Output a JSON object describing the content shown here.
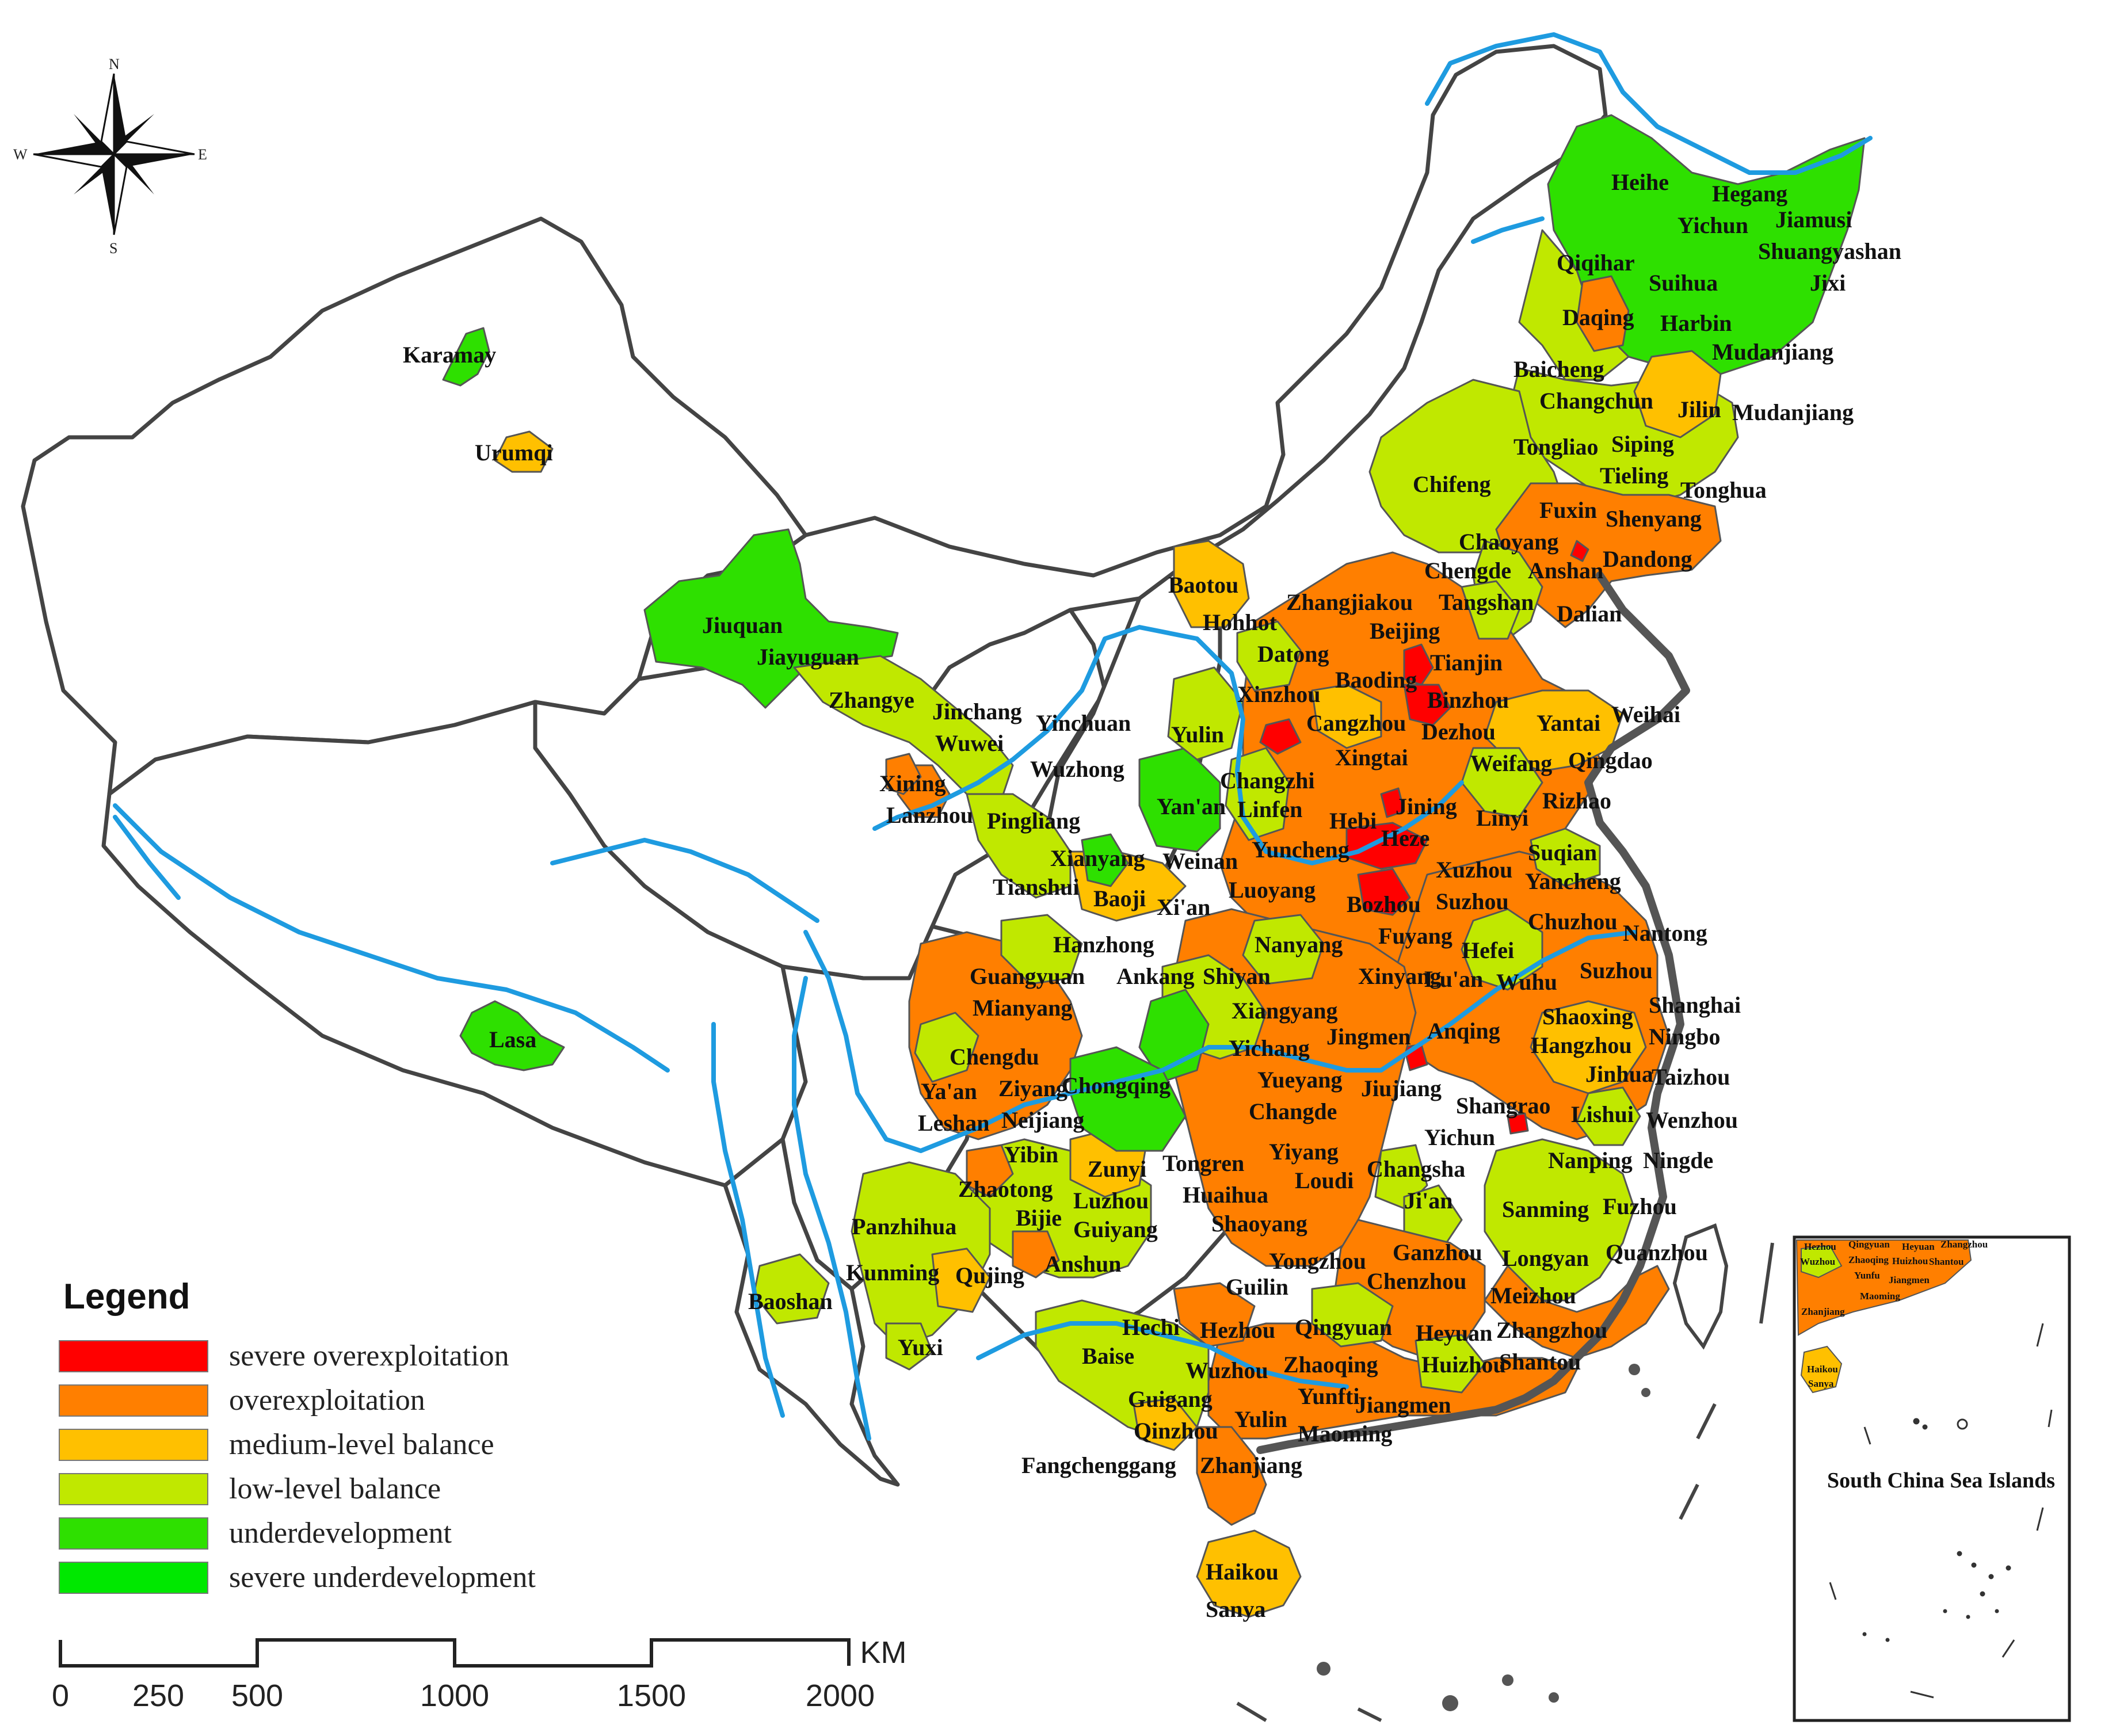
{
  "legend": {
    "title": "Legend",
    "items": [
      {
        "label": "severe overexploitation",
        "color": "#ff0000"
      },
      {
        "label": "overexploitation",
        "color": "#ff7f00"
      },
      {
        "label": "medium-level balance",
        "color": "#ffc000"
      },
      {
        "label": "low-level balance",
        "color": "#c0e800"
      },
      {
        "label": "underdevelopment",
        "color": "#2ee000"
      },
      {
        "label": "severe underdevelopment",
        "color": "#00e800"
      }
    ]
  },
  "scale_bar": {
    "unit": "KM",
    "ticks": [
      "0",
      "250",
      "500",
      "1000",
      "1500",
      "2000"
    ]
  },
  "compass": {
    "n": "N",
    "s": "S",
    "e": "E",
    "w": "W"
  },
  "inset": {
    "title": "South China Sea Islands",
    "labels": [
      "Hezhou",
      "Qingyuan",
      "Heyuan",
      "Zhangzhou",
      "Wuzhou",
      "Zhaoqing",
      "Huizhou",
      "Shantou",
      "Yunfu",
      "Jiangmen",
      "Maoming",
      "Zhanjiang",
      "Haikou",
      "Sanya"
    ]
  },
  "cities": {
    "karamay": "Karamay",
    "urumqi": "Urumqi",
    "jiuquan": "Jiuquan",
    "jiayuguan": "Jiayuguan",
    "lasa": "Lasa",
    "zhangye": "Zhangye",
    "jinchang": "Jinchang",
    "wuwei": "Wuwei",
    "yinchuan": "Yinchuan",
    "xining": "Xining",
    "lanzhou": "Lanzhou",
    "pingliang": "Pingliang",
    "wuzhong": "Wuzhong",
    "tianshui": "Tianshui",
    "xianyang": "Xianyang",
    "baoji": "Baoji",
    "weinan": "Weinan",
    "xian": "Xi'an",
    "yanan": "Yan'an",
    "yulin_n": "Yulin",
    "baotou": "Baotou",
    "hohhot": "Hohhot",
    "datong": "Datong",
    "xinzhou": "Xinzhou",
    "changzhi": "Changzhi",
    "linfen": "Linfen",
    "yuncheng": "Yuncheng",
    "luoyang": "Luoyang",
    "hebi": "Hebi",
    "heze": "Heze",
    "jining": "Jining",
    "linyi": "Linyi",
    "rizhao": "Rizhao",
    "weifang": "Weifang",
    "qingdao": "Qingdao",
    "yantai": "Yantai",
    "weihai": "Weihai",
    "dezhou": "Dezhou",
    "binzhou": "Binzhou",
    "tianjin": "Tianjin",
    "beijing": "Beijing",
    "baoding": "Baoding",
    "cangzhou": "Cangzhou",
    "xingtai": "Xingtai",
    "zhangjiakou": "Zhangjiakou",
    "tangshan": "Tangshan",
    "chengde": "Chengde",
    "dalian": "Dalian",
    "anshan": "Anshan",
    "dandong": "Dandong",
    "chaoyang": "Chaoyang",
    "fuxin": "Fuxin",
    "shenyang": "Shenyang",
    "tieling": "Tieling",
    "tonghua": "Tonghua",
    "siping": "Siping",
    "tongliao": "Tongliao",
    "chifeng": "Chifeng",
    "changchun": "Changchun",
    "jilin": "Jilin",
    "mudanjiang1": "Mudanjiang",
    "mudanjiang2": "Mudanjiang",
    "baicheng": "Baicheng",
    "daqing": "Daqing",
    "harbin": "Harbin",
    "qiqihar": "Qiqihar",
    "suihua": "Suihua",
    "heihe": "Heihe",
    "hegang": "Hegang",
    "yichun_n": "Yichun",
    "jiamusi": "Jiamusi",
    "shuangyashan": "Shuangyashan",
    "jixi": "Jixi",
    "xuzhou": "Xuzhou",
    "suqian": "Suqian",
    "yancheng": "Yancheng",
    "suzhou_n": "Suzhou",
    "bozhou": "Bozhou",
    "chuzhou": "Chuzhou",
    "nantong": "Nantong",
    "fuyang": "Fuyang",
    "hefei": "Hefei",
    "luan": "Lu'an",
    "wuhu": "Wuhu",
    "suzhou_s": "Suzhou",
    "shanghai": "Shanghai",
    "shaoxing": "Shaoxing",
    "ningbo": "Ningbo",
    "hangzhou": "Hangzhou",
    "anqing": "Anqing",
    "jinhua": "Jinhua",
    "taizhou": "Taizhou",
    "lishui": "Lishui",
    "wenzhou": "Wenzhou",
    "shangrao": "Shangrao",
    "jiujiang": "Jiujiang",
    "nanping": "Nanping",
    "ningde": "Ningde",
    "sanming": "Sanming",
    "fuzhou": "Fuzhou",
    "longyan": "Longyan",
    "quanzhou": "Quanzhou",
    "zhangzhou": "Zhangzhou",
    "meizhou": "Meizhou",
    "shantou": "Shantou",
    "heyuan": "Heyuan",
    "huizhou": "Huizhou",
    "ganzhou": "Ganzhou",
    "jian": "Ji'an",
    "changsha": "Changsha",
    "yichun_s": "Yichun",
    "nanyang": "Nanyang",
    "xinyang": "Xinyang",
    "hanzhong": "Hanzhong",
    "ankang": "Ankang",
    "shiyan": "Shiyan",
    "xiangyang": "Xiangyang",
    "jingmen": "Jingmen",
    "yichang": "Yichang",
    "yueyang": "Yueyang",
    "changde": "Changde",
    "yiyang": "Yiyang",
    "loudi": "Loudi",
    "huaihua": "Huaihua",
    "shaoyang": "Shaoyang",
    "yongzhou": "Yongzhou",
    "chenzhou": "Chenzhou",
    "guilin": "Guilin",
    "hezhou": "Hezhou",
    "qingyuan": "Qingyuan",
    "zhaoqing": "Zhaoqing",
    "wuzhou": "Wuzhou",
    "yunfu": "Yunfti",
    "jiangmen": "Jiangmen",
    "maoming": "Maoming",
    "yulin_s": "Yulin",
    "guigang": "Guigang",
    "qinzhou": "Qinzhou",
    "fangchenggang": "Fangchenggang",
    "zhanjiang": "Zhanjiang",
    "haikou": "Haikou",
    "sanya": "Sanya",
    "hechi": "Hechi",
    "baise": "Baise",
    "guangyuan": "Guangyuan",
    "mianyang": "Mianyang",
    "chengdu": "Chengdu",
    "yaan": "Ya'an",
    "ziyang": "Ziyang",
    "chongqing": "Chongqing",
    "leshan": "Leshan",
    "neijiang": "Neijiang",
    "yibin": "Yibin",
    "zunyi": "Zunyi",
    "tongren": "Tongren",
    "zhaotong": "Zhaotong",
    "luzhou": "Luzhou",
    "bijie": "Bijie",
    "guiyang": "Guiyang",
    "panzhihua": "Panzhihua",
    "kunming": "Kunming",
    "qujing": "Qujing",
    "anshun": "Anshun",
    "baoshan": "Baoshan",
    "yuxi": "Yuxi"
  }
}
